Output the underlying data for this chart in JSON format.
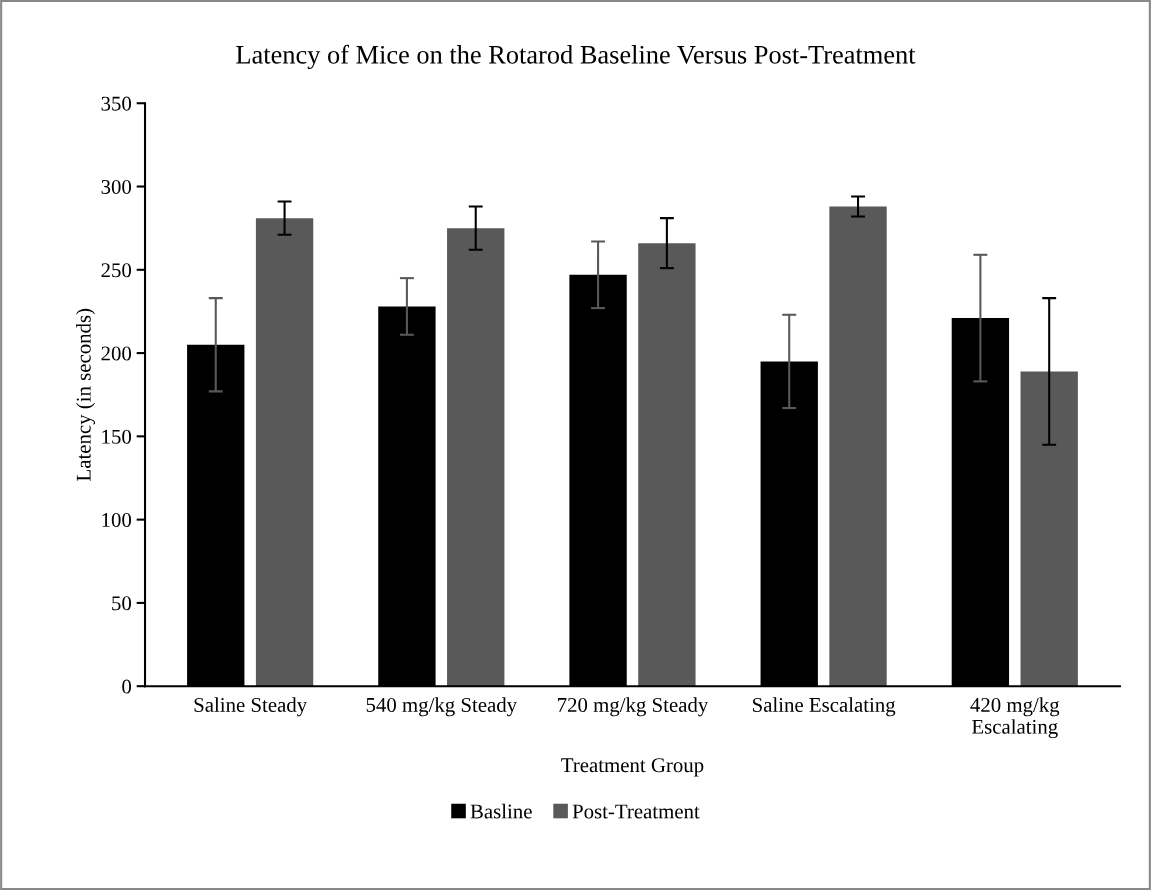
{
  "chart_data": {
    "type": "bar",
    "title": "Latency of Mice on the Rotarod Baseline Versus Post-Treatment",
    "xlabel": "Treatment Group",
    "ylabel": "Latency (in seconds)",
    "categories": [
      "Saline Steady",
      "540 mg/kg Steady",
      "720 mg/kg Steady",
      "Saline Escalating",
      "420 mg/kg\nEscalating"
    ],
    "series": [
      {
        "name": "Basline",
        "color": "#000000",
        "values": [
          205,
          228,
          247,
          195,
          221
        ],
        "errors": [
          28,
          17,
          20,
          28,
          38
        ]
      },
      {
        "name": "Post-Treatment",
        "color": "#595959",
        "values": [
          281,
          275,
          266,
          288,
          189
        ],
        "errors": [
          10,
          13,
          15,
          6,
          44
        ]
      }
    ],
    "ylim": [
      0,
      350
    ],
    "yticks": [
      0,
      50,
      100,
      150,
      200,
      250,
      300,
      350
    ],
    "grid": false,
    "legend": "bottom"
  }
}
